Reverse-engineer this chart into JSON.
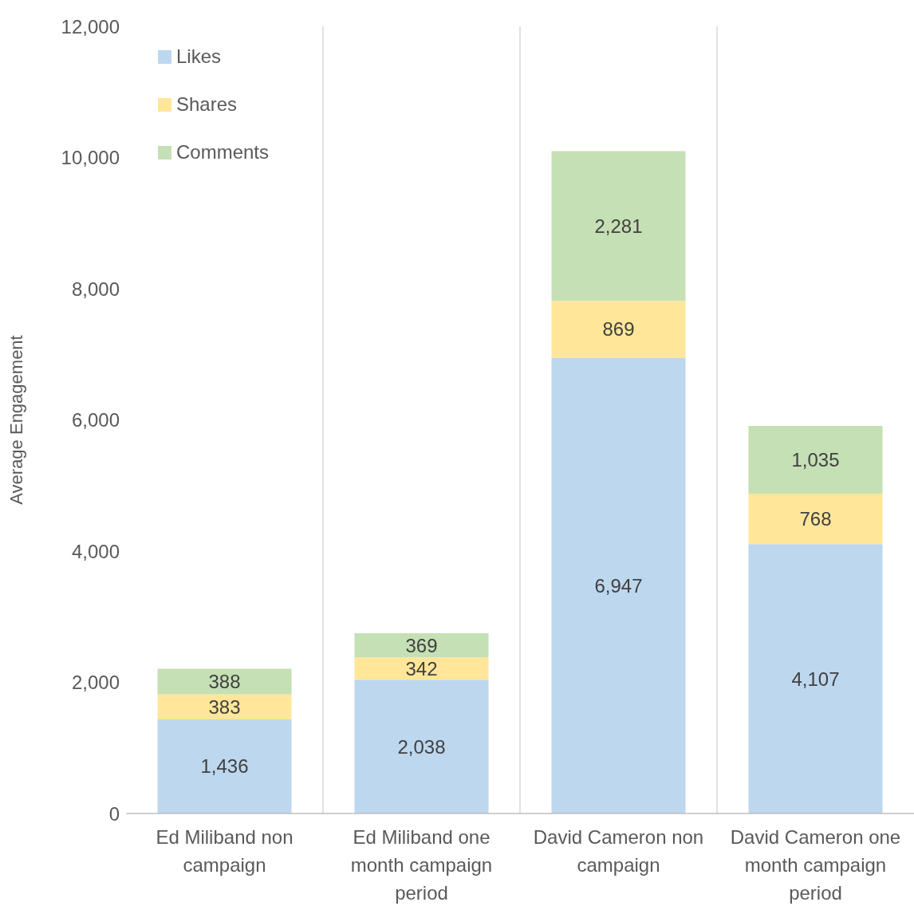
{
  "chart_data": {
    "type": "bar",
    "stacked": true,
    "ylabel": "Average Engagement",
    "categories": [
      "Ed Miliband non campaign",
      "Ed Miliband one month campaign period",
      "David Cameron non campaign",
      "David Cameron one month campaign period"
    ],
    "series": [
      {
        "name": "Likes",
        "color": "#bdd7ee",
        "values": [
          1436,
          2038,
          6947,
          4107
        ],
        "value_labels": [
          "1,436",
          "2,038",
          "6,947",
          "4,107"
        ]
      },
      {
        "name": "Shares",
        "color": "#ffe699",
        "values": [
          383,
          342,
          869,
          768
        ],
        "value_labels": [
          "383",
          "342",
          "869",
          "768"
        ]
      },
      {
        "name": "Comments",
        "color": "#c5e0b4",
        "values": [
          388,
          369,
          2281,
          1035
        ],
        "value_labels": [
          "388",
          "369",
          "2,281",
          "1,035"
        ]
      }
    ],
    "ylim": [
      0,
      12000
    ],
    "yticks": [
      0,
      {
        "value": 2000,
        "label": "2,000"
      },
      {
        "value": 4000,
        "label": "4,000"
      },
      {
        "value": 6000,
        "label": "6,000"
      },
      {
        "value": 8000,
        "label": "8,000"
      },
      {
        "value": 10000,
        "label": "10,000"
      },
      {
        "value": 12000,
        "label": "12,000"
      }
    ],
    "grid": "x",
    "legend": "top left"
  }
}
